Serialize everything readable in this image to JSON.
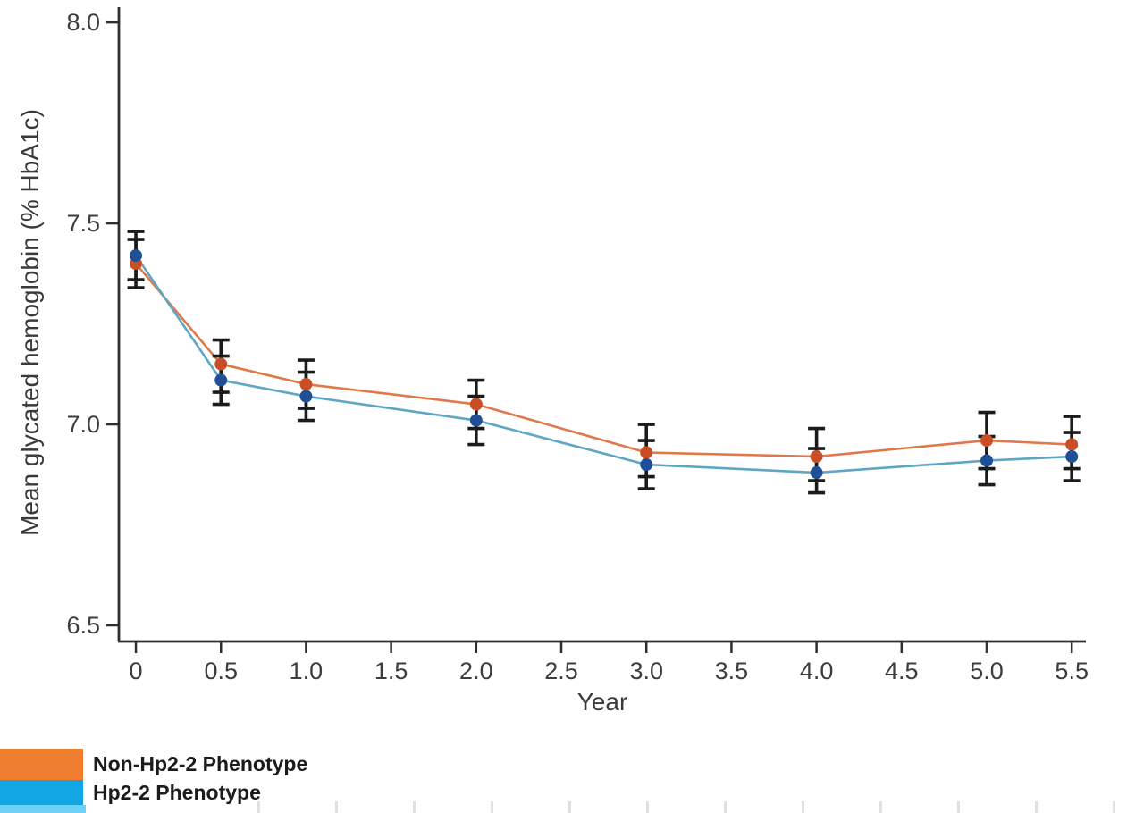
{
  "chart_data": {
    "type": "line",
    "title": "",
    "xlabel": "Year",
    "ylabel": "Mean glycated hemoglobin (% HbA1c)",
    "grid": false,
    "error_bars": true,
    "legend_position": "bottom-left",
    "xlim": [
      -0.1,
      5.583
    ],
    "ylim": [
      6.46,
      8.038
    ],
    "x_tick_labels": [
      "0",
      "0.5",
      "1.0",
      "1.5",
      "2.0",
      "2.5",
      "3.0",
      "3.5",
      "4.0",
      "4.5",
      "5.0",
      "5.5"
    ],
    "x_tick_values": [
      0,
      0.5,
      1,
      1.5,
      2,
      2.5,
      3,
      3.5,
      4,
      4.5,
      5,
      5.5
    ],
    "y_tick_labels": [
      "8.0",
      "7.5",
      "7.0",
      "6.5"
    ],
    "y_tick_values": [
      8.0,
      7.5,
      7.0,
      6.5
    ],
    "x": [
      0,
      0.5,
      1,
      2,
      3,
      4,
      5,
      5.5
    ],
    "series": [
      {
        "name": "Non-Hp2-2 Phenotype",
        "line_color": "#e0784a",
        "marker_color": "#c94e25",
        "legend_color": "#ee7e2e",
        "values": [
          7.4,
          7.15,
          7.1,
          7.05,
          6.93,
          6.92,
          6.96,
          6.95
        ],
        "ci_hi": [
          7.46,
          7.21,
          7.16,
          7.11,
          7.0,
          6.99,
          7.03,
          7.02
        ],
        "ci_lo": [
          7.34,
          7.08,
          7.04,
          6.99,
          6.87,
          6.86,
          6.89,
          6.89
        ]
      },
      {
        "name": "Hp2-2 Phenotype",
        "line_color": "#5fa6c5",
        "marker_color": "#1f4f96",
        "legend_color": "#12a7e3",
        "values": [
          7.42,
          7.11,
          7.07,
          7.01,
          6.9,
          6.88,
          6.91,
          6.92
        ],
        "ci_hi": [
          7.48,
          7.17,
          7.13,
          7.07,
          6.96,
          6.94,
          6.97,
          6.98
        ],
        "ci_lo": [
          7.36,
          7.05,
          7.01,
          6.95,
          6.84,
          6.83,
          6.85,
          6.86
        ]
      }
    ]
  },
  "legend": {
    "items": [
      {
        "label": "Non-Hp2-2 Phenotype",
        "color": "#ee7e2e"
      },
      {
        "label": "Hp2-2 Phenotype",
        "color": "#12a7e3"
      }
    ],
    "partial_third_swatch_color": "#6fd1f5"
  }
}
